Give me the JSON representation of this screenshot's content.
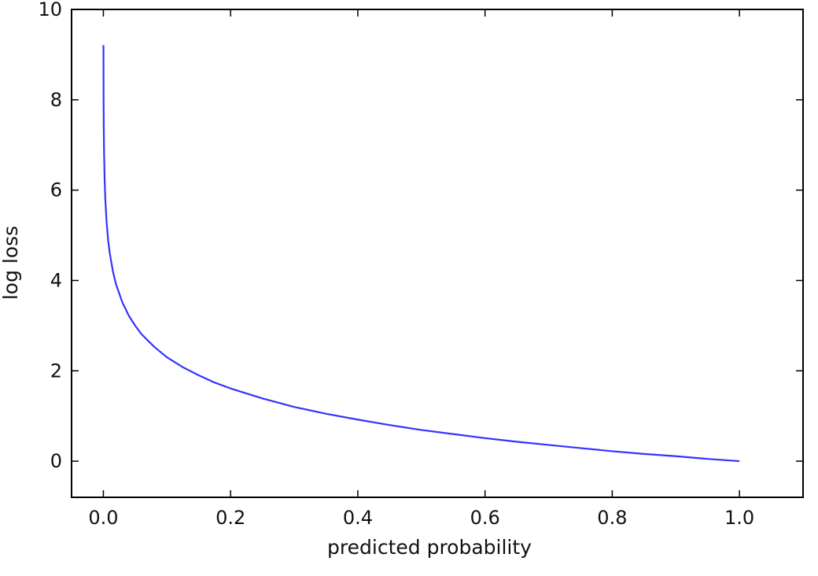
{
  "chart_data": {
    "type": "line",
    "title": "",
    "xlabel": "predicted probability",
    "ylabel": "log loss",
    "xlim": [
      -0.05,
      1.1
    ],
    "ylim": [
      -0.8,
      10
    ],
    "xticks": [
      {
        "value": 0.0,
        "label": "0.0"
      },
      {
        "value": 0.2,
        "label": "0.2"
      },
      {
        "value": 0.4,
        "label": "0.4"
      },
      {
        "value": 0.6,
        "label": "0.6"
      },
      {
        "value": 0.8,
        "label": "0.8"
      },
      {
        "value": 1.0,
        "label": "1.0"
      }
    ],
    "yticks": [
      {
        "value": 0,
        "label": "0"
      },
      {
        "value": 2,
        "label": "2"
      },
      {
        "value": 4,
        "label": "4"
      },
      {
        "value": 6,
        "label": "6"
      },
      {
        "value": 8,
        "label": "8"
      },
      {
        "value": 10,
        "label": "10"
      }
    ],
    "grid": false,
    "legend": "none",
    "series": [
      {
        "color": "#3333ff",
        "x": [
          0.0001,
          0.0003,
          0.0006,
          0.001,
          0.002,
          0.003,
          0.005,
          0.0075,
          0.01,
          0.015,
          0.02,
          0.03,
          0.04,
          0.05,
          0.06,
          0.08,
          0.1,
          0.125,
          0.15,
          0.175,
          0.2,
          0.25,
          0.3,
          0.35,
          0.4,
          0.45,
          0.5,
          0.55,
          0.6,
          0.65,
          0.7,
          0.75,
          0.8,
          0.85,
          0.9,
          0.95,
          1.0
        ],
        "y": [
          9.21,
          8.11,
          7.42,
          6.91,
          6.21,
          5.81,
          5.3,
          4.89,
          4.61,
          4.2,
          3.91,
          3.51,
          3.22,
          3.0,
          2.81,
          2.53,
          2.3,
          2.08,
          1.9,
          1.74,
          1.61,
          1.39,
          1.2,
          1.05,
          0.92,
          0.8,
          0.69,
          0.6,
          0.51,
          0.43,
          0.36,
          0.29,
          0.22,
          0.16,
          0.11,
          0.05,
          0.0
        ]
      }
    ]
  }
}
